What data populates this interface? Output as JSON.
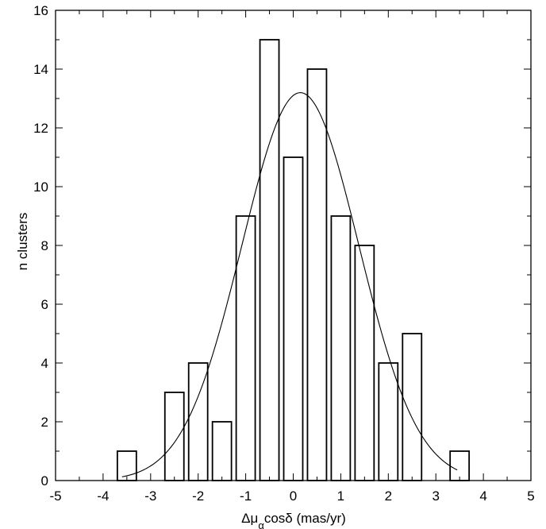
{
  "chart_data": {
    "type": "bar",
    "xlabel": {
      "prefix": "Δμ",
      "subscript": "α",
      "suffix": "cosδ (mas/yr)"
    },
    "ylabel": "n clusters",
    "xlim": [
      -5,
      5
    ],
    "ylim": [
      0,
      16
    ],
    "x_ticks": [
      -5,
      -4,
      -3,
      -2,
      -1,
      0,
      1,
      2,
      3,
      4,
      5
    ],
    "y_ticks": [
      0,
      2,
      4,
      6,
      8,
      10,
      12,
      14,
      16
    ],
    "x_minor_step": 0.5,
    "y_minor_step": 1,
    "bars": [
      {
        "center": -3.5,
        "value": 1
      },
      {
        "center": -2.5,
        "value": 3
      },
      {
        "center": -2.0,
        "value": 4
      },
      {
        "center": -1.5,
        "value": 2
      },
      {
        "center": -1.0,
        "value": 9
      },
      {
        "center": -0.5,
        "value": 15
      },
      {
        "center": 0.0,
        "value": 11
      },
      {
        "center": 0.5,
        "value": 14
      },
      {
        "center": 1.0,
        "value": 9
      },
      {
        "center": 1.5,
        "value": 8
      },
      {
        "center": 2.0,
        "value": 4
      },
      {
        "center": 2.5,
        "value": 5
      },
      {
        "center": 3.5,
        "value": 1
      }
    ],
    "bar_width": 0.4,
    "fit_curve": {
      "type": "gaussian",
      "amplitude": 13.2,
      "mean": 0.15,
      "sigma": 1.23,
      "x_range": [
        -3.6,
        3.45
      ]
    },
    "grid": false,
    "legend": "none",
    "colors": {
      "bar_fill": "#ffffff",
      "stroke": "#000000"
    }
  }
}
